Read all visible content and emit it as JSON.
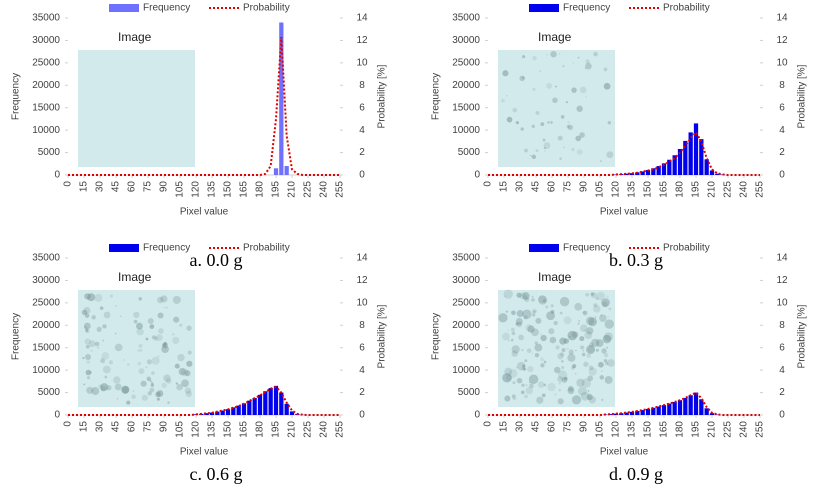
{
  "chart_data": [
    {
      "type": "bar",
      "caption": "a. 0.0 g",
      "image_label": "Image",
      "xlabel": "Pixel value",
      "ylabel": "Frequency",
      "y2label": "Probability [%]",
      "x": [
        0,
        5,
        10,
        15,
        20,
        25,
        30,
        35,
        40,
        45,
        50,
        55,
        60,
        65,
        70,
        75,
        80,
        85,
        90,
        95,
        100,
        105,
        110,
        115,
        120,
        125,
        130,
        135,
        140,
        145,
        150,
        155,
        160,
        165,
        170,
        175,
        180,
        185,
        190,
        195,
        200,
        205,
        210,
        215,
        220,
        225,
        230,
        235,
        240,
        245,
        250,
        255
      ],
      "xlim": [
        0,
        255
      ],
      "xticks": [
        0,
        15,
        30,
        45,
        60,
        75,
        90,
        105,
        120,
        135,
        150,
        165,
        180,
        195,
        210,
        225,
        240,
        255
      ],
      "ylim": [
        0,
        35000
      ],
      "yticks": [
        0,
        5000,
        10000,
        15000,
        20000,
        25000,
        30000,
        35000
      ],
      "y2lim": [
        0,
        14
      ],
      "y2ticks": [
        0,
        2,
        4,
        6,
        8,
        10,
        12,
        14
      ],
      "legend": "top",
      "series": [
        {
          "name": "Frequency",
          "color": "#7070ff",
          "kind": "bar",
          "values": [
            0,
            0,
            0,
            0,
            0,
            0,
            0,
            0,
            0,
            0,
            0,
            0,
            0,
            0,
            0,
            0,
            0,
            0,
            0,
            0,
            0,
            0,
            0,
            0,
            0,
            0,
            0,
            0,
            0,
            0,
            0,
            0,
            0,
            0,
            0,
            0,
            0,
            0,
            0,
            1500,
            34000,
            2000,
            0,
            0,
            0,
            0,
            0,
            0,
            0,
            0,
            0,
            0
          ]
        },
        {
          "name": "Probability",
          "color": "#e00000",
          "kind": "line",
          "axis": "y2",
          "values": [
            0,
            0,
            0,
            0,
            0,
            0,
            0,
            0,
            0,
            0,
            0,
            0,
            0,
            0,
            0,
            0,
            0,
            0,
            0,
            0,
            0,
            0,
            0,
            0,
            0,
            0,
            0,
            0,
            0,
            0,
            0,
            0,
            0,
            0,
            0,
            0,
            0,
            0.1,
            0.8,
            5,
            12.3,
            3.5,
            0.5,
            0.1,
            0,
            0,
            0,
            0,
            0,
            0,
            0,
            0
          ]
        }
      ]
    },
    {
      "type": "bar",
      "caption": "b. 0.3 g",
      "image_label": "Image",
      "xlabel": "Pixel value",
      "ylabel": "Frequency",
      "y2label": "Probability [%]",
      "x": [
        0,
        5,
        10,
        15,
        20,
        25,
        30,
        35,
        40,
        45,
        50,
        55,
        60,
        65,
        70,
        75,
        80,
        85,
        90,
        95,
        100,
        105,
        110,
        115,
        120,
        125,
        130,
        135,
        140,
        145,
        150,
        155,
        160,
        165,
        170,
        175,
        180,
        185,
        190,
        195,
        200,
        205,
        210,
        215,
        220,
        225,
        230,
        235,
        240,
        245,
        250,
        255
      ],
      "xlim": [
        0,
        255
      ],
      "xticks": [
        0,
        15,
        30,
        45,
        60,
        75,
        90,
        105,
        120,
        135,
        150,
        165,
        180,
        195,
        210,
        225,
        240,
        255
      ],
      "ylim": [
        0,
        35000
      ],
      "yticks": [
        0,
        5000,
        10000,
        15000,
        20000,
        25000,
        30000,
        35000
      ],
      "y2lim": [
        0,
        14
      ],
      "y2ticks": [
        0,
        2,
        4,
        6,
        8,
        10,
        12,
        14
      ],
      "legend": "top",
      "series": [
        {
          "name": "Frequency",
          "color": "#0000ee",
          "kind": "bar",
          "values": [
            0,
            0,
            0,
            0,
            0,
            0,
            0,
            0,
            0,
            0,
            0,
            0,
            0,
            0,
            0,
            0,
            0,
            0,
            0,
            0,
            0,
            0,
            0,
            0,
            100,
            200,
            300,
            400,
            600,
            800,
            1100,
            1500,
            2000,
            2600,
            3400,
            4400,
            5800,
            7600,
            9500,
            11500,
            8000,
            3500,
            1000,
            300,
            100,
            0,
            0,
            0,
            0,
            0,
            0,
            0
          ]
        },
        {
          "name": "Probability",
          "color": "#e00000",
          "kind": "line",
          "axis": "y2",
          "values": [
            0,
            0,
            0,
            0,
            0,
            0,
            0,
            0,
            0,
            0,
            0,
            0,
            0,
            0,
            0,
            0,
            0,
            0,
            0,
            0,
            0,
            0,
            0,
            0,
            0.05,
            0.08,
            0.1,
            0.15,
            0.2,
            0.3,
            0.4,
            0.5,
            0.7,
            0.9,
            1.2,
            1.5,
            2,
            2.6,
            3.3,
            3.8,
            3,
            1.5,
            0.5,
            0.15,
            0.05,
            0,
            0,
            0,
            0,
            0,
            0,
            0
          ]
        }
      ]
    },
    {
      "type": "bar",
      "caption": "c. 0.6 g",
      "image_label": "Image",
      "xlabel": "Pixel value",
      "ylabel": "Frequency",
      "y2label": "Probability [%]",
      "x": [
        0,
        5,
        10,
        15,
        20,
        25,
        30,
        35,
        40,
        45,
        50,
        55,
        60,
        65,
        70,
        75,
        80,
        85,
        90,
        95,
        100,
        105,
        110,
        115,
        120,
        125,
        130,
        135,
        140,
        145,
        150,
        155,
        160,
        165,
        170,
        175,
        180,
        185,
        190,
        195,
        200,
        205,
        210,
        215,
        220,
        225,
        230,
        235,
        240,
        245,
        250,
        255
      ],
      "xlim": [
        0,
        255
      ],
      "xticks": [
        0,
        15,
        30,
        45,
        60,
        75,
        90,
        105,
        120,
        135,
        150,
        165,
        180,
        195,
        210,
        225,
        240,
        255
      ],
      "ylim": [
        0,
        35000
      ],
      "yticks": [
        0,
        5000,
        10000,
        15000,
        20000,
        25000,
        30000,
        35000
      ],
      "y2lim": [
        0,
        14
      ],
      "y2ticks": [
        0,
        2,
        4,
        6,
        8,
        10,
        12,
        14
      ],
      "legend": "top",
      "series": [
        {
          "name": "Frequency",
          "color": "#0000ee",
          "kind": "bar",
          "values": [
            0,
            0,
            0,
            0,
            0,
            0,
            0,
            0,
            0,
            0,
            0,
            0,
            0,
            0,
            0,
            0,
            0,
            0,
            0,
            0,
            0,
            0,
            0,
            0,
            150,
            250,
            400,
            550,
            750,
            1000,
            1300,
            1700,
            2100,
            2600,
            3200,
            3800,
            4500,
            5300,
            6000,
            6500,
            5000,
            2500,
            800,
            200,
            50,
            0,
            0,
            0,
            0,
            0,
            0,
            0
          ]
        },
        {
          "name": "Probability",
          "color": "#e00000",
          "kind": "line",
          "axis": "y2",
          "values": [
            0,
            0,
            0,
            0,
            0,
            0,
            0,
            0,
            0,
            0,
            0,
            0,
            0,
            0,
            0,
            0,
            0,
            0,
            0,
            0,
            0,
            0,
            0,
            0,
            0.06,
            0.1,
            0.15,
            0.2,
            0.3,
            0.4,
            0.5,
            0.65,
            0.8,
            1,
            1.25,
            1.5,
            1.75,
            2.05,
            2.35,
            2.5,
            2,
            1.1,
            0.4,
            0.1,
            0.02,
            0,
            0,
            0,
            0,
            0,
            0,
            0
          ]
        }
      ]
    },
    {
      "type": "bar",
      "caption": "d. 0.9 g",
      "image_label": "Image",
      "xlabel": "Pixel value",
      "ylabel": "Frequency",
      "y2label": "Probability [%]",
      "x": [
        0,
        5,
        10,
        15,
        20,
        25,
        30,
        35,
        40,
        45,
        50,
        55,
        60,
        65,
        70,
        75,
        80,
        85,
        90,
        95,
        100,
        105,
        110,
        115,
        120,
        125,
        130,
        135,
        140,
        145,
        150,
        155,
        160,
        165,
        170,
        175,
        180,
        185,
        190,
        195,
        200,
        205,
        210,
        215,
        220,
        225,
        230,
        235,
        240,
        245,
        250,
        255
      ],
      "xlim": [
        0,
        255
      ],
      "xticks": [
        0,
        15,
        30,
        45,
        60,
        75,
        90,
        105,
        120,
        135,
        150,
        165,
        180,
        195,
        210,
        225,
        240,
        255
      ],
      "ylim": [
        0,
        35000
      ],
      "yticks": [
        0,
        5000,
        10000,
        15000,
        20000,
        25000,
        30000,
        35000
      ],
      "y2lim": [
        0,
        14
      ],
      "y2ticks": [
        0,
        2,
        4,
        6,
        8,
        10,
        12,
        14
      ],
      "legend": "top",
      "series": [
        {
          "name": "Frequency",
          "color": "#0000ee",
          "kind": "bar",
          "values": [
            0,
            0,
            0,
            0,
            0,
            0,
            0,
            0,
            0,
            0,
            0,
            0,
            0,
            0,
            0,
            0,
            0,
            0,
            0,
            0,
            0,
            0,
            100,
            200,
            300,
            400,
            550,
            700,
            900,
            1100,
            1350,
            1600,
            1900,
            2200,
            2550,
            2900,
            3300,
            3800,
            4400,
            5000,
            3500,
            1500,
            400,
            100,
            0,
            0,
            0,
            0,
            0,
            0,
            0,
            0
          ]
        },
        {
          "name": "Probability",
          "color": "#e00000",
          "kind": "line",
          "axis": "y2",
          "values": [
            0,
            0,
            0,
            0,
            0,
            0,
            0,
            0,
            0,
            0,
            0,
            0,
            0,
            0,
            0,
            0,
            0,
            0,
            0,
            0,
            0,
            0,
            0.04,
            0.08,
            0.12,
            0.16,
            0.22,
            0.28,
            0.36,
            0.44,
            0.54,
            0.64,
            0.76,
            0.88,
            1.02,
            1.16,
            1.32,
            1.52,
            1.76,
            2,
            1.5,
            0.7,
            0.2,
            0.05,
            0,
            0,
            0,
            0,
            0,
            0,
            0,
            0
          ]
        }
      ]
    }
  ]
}
